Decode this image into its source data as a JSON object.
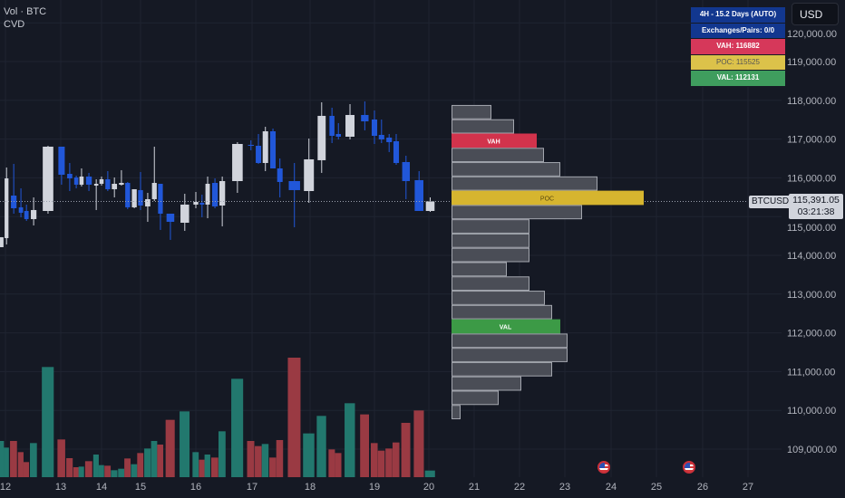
{
  "legend": {
    "line1": "Vol · BTC",
    "line2": "CVD"
  },
  "toolbar": {
    "currency_button": "USD"
  },
  "info_panel": {
    "timeframe": "4H - 15.2 Days (AUTO)",
    "exchanges": "Exchanges/Pairs: 0/0",
    "vah": "VAH: 116882",
    "poc": "POC: 115525",
    "val": "VAL: 112131"
  },
  "price_tag": {
    "symbol": "BTCUSD",
    "price": "115,391.05",
    "countdown": "03:21:38"
  },
  "colors": {
    "background": "#151924",
    "up": "#d1d4dc",
    "down": "#2157d9",
    "vol_up": "#22786e",
    "vol_down": "#9a3a43",
    "vah": "#d2334c",
    "poc": "#d6b52f",
    "val": "#3c9a46",
    "profile": "#4a4d56"
  },
  "events": [
    {
      "icon": "us-flag-icon",
      "day": 23.85
    },
    {
      "icon": "us-flag-icon",
      "day": 25.7
    }
  ],
  "chart_data": {
    "type": "candlestick",
    "symbol": "BTCUSD",
    "current_price": 115391.05,
    "y_ticks": [
      120000,
      119000,
      118000,
      117000,
      116000,
      115000,
      114000,
      113000,
      112000,
      111000,
      110000,
      109000
    ],
    "y_tick_labels": [
      "120,000.00",
      "119,000.00",
      "118,000.00",
      "117,000.00",
      "116,000.00",
      "115,000.00",
      "114,000.00",
      "113,000.00",
      "112,000.00",
      "111,000.00",
      "110,000.00",
      "109,000.00"
    ],
    "x_ticks": [
      "12",
      "13",
      "14",
      "15",
      "16",
      "17",
      "18",
      "19",
      "20",
      "21",
      "22",
      "23",
      "24",
      "25",
      "26",
      "27"
    ],
    "candle_fields": [
      "day",
      "open",
      "high",
      "low",
      "close",
      "volume",
      "volume_dir"
    ],
    "candles": [
      [
        11.93,
        114211,
        114468,
        114211,
        114468,
        120,
        "up"
      ],
      [
        12.02,
        114444,
        116267,
        114281,
        115986,
        98,
        "up"
      ],
      [
        12.15,
        115542,
        116360,
        115075,
        115215,
        120,
        "down"
      ],
      [
        12.28,
        115239,
        115729,
        114982,
        115099,
        83,
        "down"
      ],
      [
        12.38,
        115145,
        115309,
        114888,
        114935,
        50,
        "down"
      ],
      [
        12.51,
        114935,
        115495,
        114771,
        115169,
        113,
        "up"
      ],
      [
        12.77,
        115145,
        116827,
        115075,
        116804,
        365,
        "up"
      ],
      [
        13.02,
        116804,
        116804,
        115823,
        116080,
        125,
        "down"
      ],
      [
        13.22,
        116103,
        116383,
        115659,
        115986,
        63,
        "down"
      ],
      [
        13.38,
        116010,
        116056,
        115729,
        115823,
        33,
        "down"
      ],
      [
        13.51,
        115823,
        116243,
        115776,
        116033,
        35,
        "up"
      ],
      [
        13.69,
        116033,
        116127,
        115659,
        115823,
        53,
        "down"
      ],
      [
        13.87,
        115799,
        115963,
        115169,
        115846,
        75,
        "up"
      ],
      [
        14.0,
        115846,
        116033,
        115799,
        115963,
        40,
        "up"
      ],
      [
        14.16,
        115963,
        116173,
        115659,
        115706,
        38,
        "down"
      ],
      [
        14.33,
        115706,
        116010,
        115495,
        115846,
        23,
        "up"
      ],
      [
        14.51,
        115823,
        116197,
        115799,
        115869,
        28,
        "up"
      ],
      [
        14.67,
        115869,
        115893,
        115192,
        115239,
        62,
        "down"
      ],
      [
        14.84,
        115239,
        115706,
        115215,
        115706,
        43,
        "up"
      ],
      [
        15.0,
        115683,
        116150,
        115169,
        115285,
        80,
        "down"
      ],
      [
        15.13,
        115262,
        115612,
        114865,
        115449,
        95,
        "up"
      ],
      [
        15.25,
        115449,
        116804,
        115402,
        115869,
        120,
        "up"
      ],
      [
        15.36,
        115846,
        115846,
        114655,
        115075,
        108,
        "down"
      ],
      [
        15.54,
        115075,
        115075,
        114398,
        114865,
        190,
        "down"
      ],
      [
        15.8,
        114841,
        115589,
        114631,
        115309,
        218,
        "up"
      ],
      [
        16.0,
        115309,
        115636,
        115215,
        115379,
        83,
        "up"
      ],
      [
        16.11,
        115355,
        115566,
        114982,
        115309,
        58,
        "down"
      ],
      [
        16.21,
        115309,
        116033,
        114958,
        115846,
        75,
        "up"
      ],
      [
        16.34,
        115869,
        115986,
        115215,
        115262,
        65,
        "down"
      ],
      [
        16.47,
        115285,
        116033,
        114748,
        115916,
        152,
        "up"
      ],
      [
        16.74,
        115916,
        116921,
        115612,
        116874,
        326,
        "up"
      ],
      [
        16.98,
        116851,
        116968,
        116711,
        116827,
        120,
        "down"
      ],
      [
        17.11,
        116827,
        117131,
        116360,
        116383,
        103,
        "down"
      ],
      [
        17.23,
        116383,
        117318,
        116173,
        117201,
        110,
        "up"
      ],
      [
        17.36,
        117201,
        117271,
        116243,
        116243,
        65,
        "down"
      ],
      [
        17.48,
        116243,
        116500,
        115495,
        115893,
        123,
        "down"
      ],
      [
        17.73,
        115916,
        116383,
        114725,
        115683,
        396,
        "down"
      ],
      [
        17.98,
        115659,
        117014,
        115355,
        116477,
        145,
        "up"
      ],
      [
        18.18,
        116454,
        117949,
        116127,
        117599,
        203,
        "up"
      ],
      [
        18.34,
        117599,
        117809,
        116897,
        117084,
        92,
        "down"
      ],
      [
        18.44,
        117131,
        117412,
        116991,
        117061,
        80,
        "down"
      ],
      [
        18.62,
        117061,
        117902,
        116991,
        117622,
        245,
        "up"
      ],
      [
        18.85,
        117622,
        117972,
        117225,
        117458,
        208,
        "down"
      ],
      [
        19.0,
        117505,
        117739,
        116874,
        117084,
        113,
        "down"
      ],
      [
        19.13,
        117108,
        117505,
        116897,
        116991,
        88,
        "down"
      ],
      [
        19.27,
        117038,
        117131,
        116664,
        116921,
        95,
        "down"
      ],
      [
        19.4,
        116944,
        117131,
        116337,
        116383,
        115,
        "down"
      ],
      [
        19.58,
        116407,
        116570,
        115449,
        115916,
        180,
        "down"
      ],
      [
        19.82,
        115940,
        116173,
        115145,
        115145,
        221,
        "down"
      ],
      [
        20.03,
        115145,
        115495,
        115122,
        115391,
        22,
        "up"
      ]
    ],
    "volume_profile": {
      "price_top": 117880,
      "price_bottom": 109770,
      "rows_top_to_bottom": [
        43,
        68,
        93,
        101,
        119,
        160,
        211,
        143,
        85,
        85,
        85,
        60,
        85,
        102,
        110,
        119,
        127,
        127,
        110,
        76,
        51,
        9
      ],
      "vah_row": 2,
      "poc_row": 6,
      "val_row": 15,
      "labels": {
        "vah": "VAH",
        "poc": "POC",
        "val": "VAL"
      }
    }
  }
}
